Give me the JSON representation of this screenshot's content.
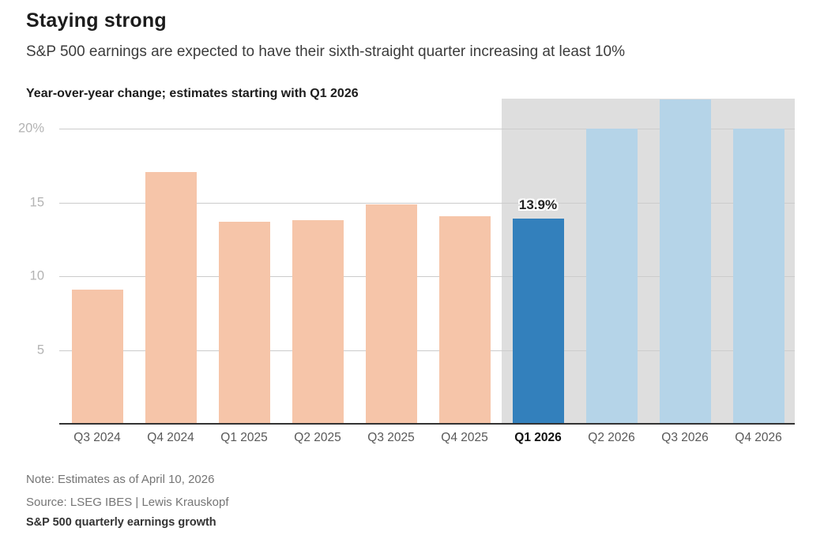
{
  "header": {
    "title": "Staying strong",
    "subtitle": "S&P 500 earnings are expected to have their sixth-straight quarter increasing at least 10%"
  },
  "chart_data": {
    "type": "bar",
    "title": "Year-over-year change; estimates starting with Q1 2026",
    "categories": [
      "Q3 2024",
      "Q4 2024",
      "Q1 2025",
      "Q2 2025",
      "Q3 2025",
      "Q4 2025",
      "Q1 2026",
      "Q2 2026",
      "Q3 2026",
      "Q4 2026"
    ],
    "values": [
      9.1,
      17.1,
      13.7,
      13.8,
      14.9,
      14.1,
      13.9,
      20.0,
      22.0,
      20.0
    ],
    "bar_roles": [
      "actual",
      "actual",
      "actual",
      "actual",
      "actual",
      "actual",
      "highlight",
      "estimate",
      "estimate",
      "estimate"
    ],
    "highlight_index": 6,
    "highlight_label": "13.9%",
    "estimate_start_index": 6,
    "y_ticks": [
      {
        "value": 20,
        "label": "20%"
      },
      {
        "value": 15,
        "label": "15"
      },
      {
        "value": 10,
        "label": "10"
      },
      {
        "value": 5,
        "label": "5"
      }
    ],
    "ylim": [
      0,
      22.05
    ],
    "grid": true,
    "legend": false,
    "colors": {
      "actual": "#f6c5a9",
      "highlight": "#3380bc",
      "estimate": "#b5d4e8",
      "estimate_region": "#dedede",
      "gridline": "#cccccc",
      "axis_line": "#333333"
    }
  },
  "footer": {
    "note": "Note: Estimates as of April 10, 2026",
    "source": "Source: LSEG IBES | Lewis Krauskopf",
    "tagline": "S&P 500 quarterly earnings growth"
  }
}
